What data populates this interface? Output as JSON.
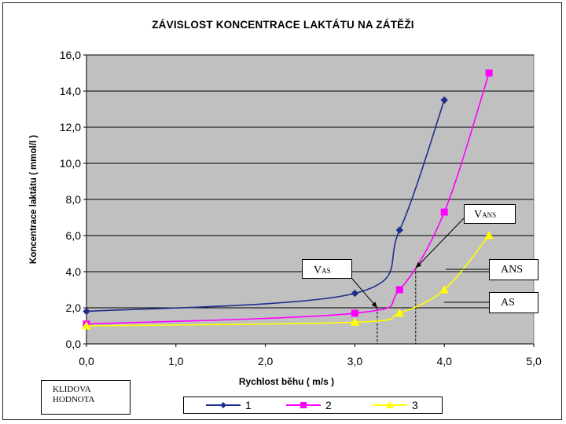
{
  "chart_data": {
    "type": "line",
    "title": "ZÁVISLOST KONCENTRACE LAKTÁTU NA ZÁTĚŽI",
    "xlabel": "Rychlost běhu ( m/s )",
    "ylabel": "Koncentrace laktátu ( mmol/l )",
    "xlim": [
      0,
      5
    ],
    "ylim": [
      0,
      16
    ],
    "x_ticks": [
      "0,0",
      "1,0",
      "2,0",
      "3,0",
      "4,0",
      "5,0"
    ],
    "y_ticks": [
      "0,0",
      "2,0",
      "4,0",
      "6,0",
      "8,0",
      "10,0",
      "12,0",
      "14,0",
      "16,0"
    ],
    "grid": "horizontal",
    "legend_position": "bottom",
    "series": [
      {
        "name": "1",
        "color": "#1f2e8c",
        "marker": "diamond",
        "x": [
          0,
          3,
          3.5,
          4
        ],
        "y": [
          1.8,
          2.8,
          6.3,
          13.5
        ]
      },
      {
        "name": "2",
        "color": "#ff00ff",
        "marker": "square",
        "x": [
          0,
          3,
          3.5,
          4,
          4.5
        ],
        "y": [
          1.1,
          1.7,
          3.0,
          7.3,
          15.0
        ]
      },
      {
        "name": "3",
        "color": "#ffff00",
        "marker": "triangle",
        "x": [
          0,
          3,
          3.5,
          4,
          4.5
        ],
        "y": [
          1.0,
          1.2,
          1.7,
          3.0,
          6.0
        ]
      }
    ],
    "reference_lines": [
      {
        "x": 3.25,
        "label": "V",
        "subscript": "AS"
      },
      {
        "x": 3.68,
        "label": "V",
        "subscript": "ANS"
      }
    ],
    "annotations": {
      "vas": {
        "main": "V",
        "sub": "AS"
      },
      "vans": {
        "main": "V",
        "sub": "ANS"
      },
      "ans": "ANS",
      "as": "AS",
      "klid_line1": "KLIDOVA",
      "klid_line2": "HODNOTA"
    }
  }
}
